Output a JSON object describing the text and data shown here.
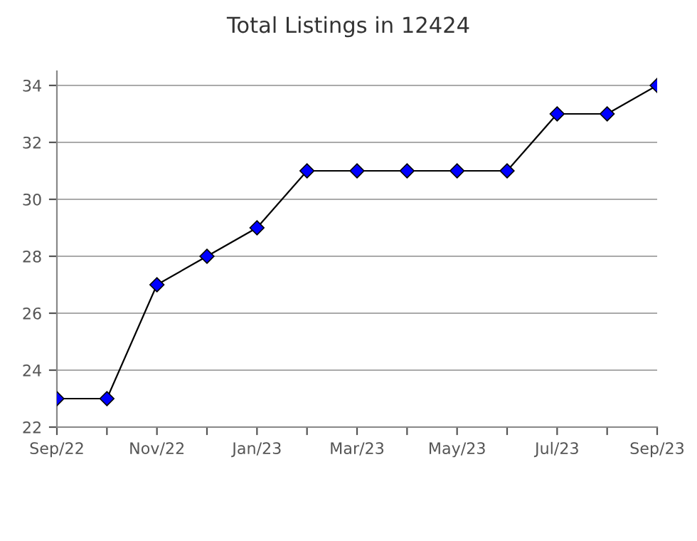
{
  "chart_data": {
    "type": "line",
    "title": "Total Listings in 12424",
    "categories": [
      "Sep/22",
      null,
      "Nov/22",
      null,
      "Jan/23",
      null,
      "Mar/23",
      null,
      "May/23",
      null,
      "Jul/23",
      null,
      "Sep/23"
    ],
    "series": [
      {
        "color": "#0000ff",
        "values": [
          23,
          23,
          27,
          28,
          29,
          31,
          31,
          31,
          31,
          31,
          33,
          33,
          34
        ]
      }
    ],
    "ylim": [
      22,
      34.5
    ],
    "yticks": [
      22,
      24,
      26,
      28,
      30,
      32,
      34
    ],
    "grid": "y",
    "marker": "diamond",
    "line_style": "solid",
    "legend": false
  }
}
